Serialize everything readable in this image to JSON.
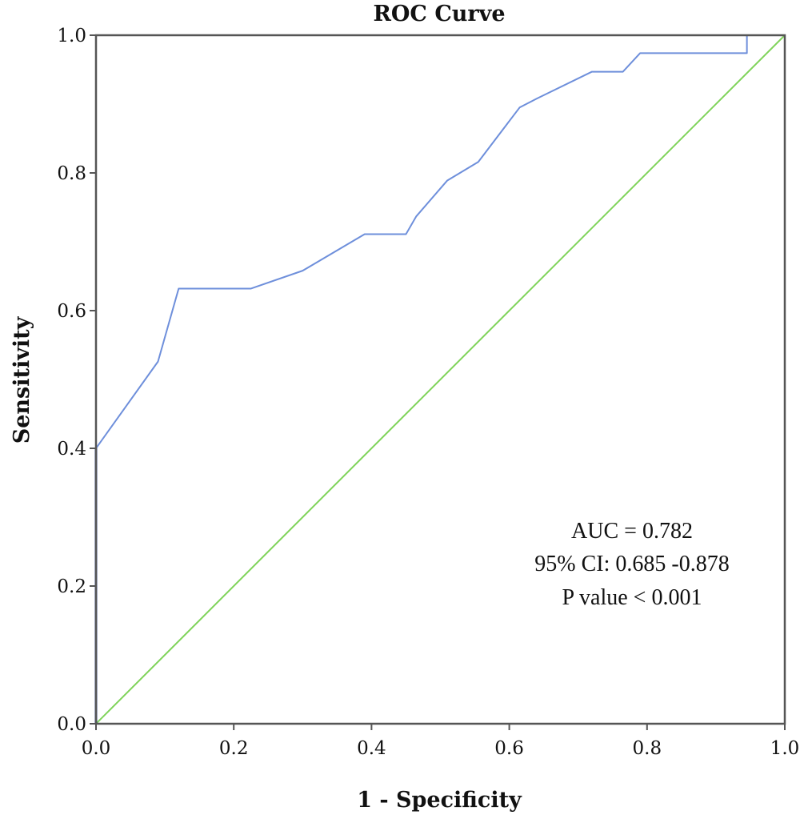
{
  "chart_data": {
    "type": "line",
    "title": "ROC Curve",
    "xlabel": "1 - Specificity",
    "ylabel": "Sensitivity",
    "xlim": [
      0,
      1
    ],
    "ylim": [
      0,
      1
    ],
    "xticks": [
      "0.0",
      "0.2",
      "0.4",
      "0.6",
      "0.8",
      "1.0"
    ],
    "yticks": [
      "0.0",
      "0.2",
      "0.4",
      "0.6",
      "0.8",
      "1.0"
    ],
    "grid": false,
    "series": [
      {
        "color": "#6e8fdb",
        "x": [
          0,
          0,
          0.09,
          0.12,
          0.225,
          0.3,
          0.39,
          0.45,
          0.465,
          0.51,
          0.555,
          0.615,
          0.64,
          0.72,
          0.765,
          0.79,
          0.945,
          0.945,
          1.0
        ],
        "y": [
          0,
          0.4,
          0.526,
          0.632,
          0.632,
          0.658,
          0.711,
          0.711,
          0.737,
          0.789,
          0.816,
          0.895,
          0.908,
          0.947,
          0.947,
          0.974,
          0.974,
          1.0,
          1.0
        ]
      },
      {
        "color": "#7fd35a",
        "x": [
          0,
          1
        ],
        "y": [
          0,
          1
        ]
      }
    ],
    "annotations": [
      "AUC = 0.782",
      "95% CI: 0.685 -0.878",
      "P value < 0.001"
    ]
  }
}
